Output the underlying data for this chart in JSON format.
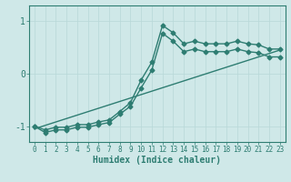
{
  "xlabel": "Humidex (Indice chaleur)",
  "ylabel": "",
  "xlim": [
    -0.5,
    23.5
  ],
  "ylim": [
    -1.3,
    1.3
  ],
  "xticks": [
    0,
    1,
    2,
    3,
    4,
    5,
    6,
    7,
    8,
    9,
    10,
    11,
    12,
    13,
    14,
    15,
    16,
    17,
    18,
    19,
    20,
    21,
    22,
    23
  ],
  "yticks": [
    -1,
    0,
    1
  ],
  "bg_color": "#cfe8e8",
  "line_color": "#2e7d72",
  "grid_color": "#b8d8d8",
  "line1_x": [
    0,
    1,
    2,
    3,
    4,
    5,
    6,
    7,
    8,
    9,
    10,
    11,
    12,
    13,
    14,
    15,
    16,
    17,
    18,
    19,
    20,
    21,
    22,
    23
  ],
  "line1_y": [
    -1.0,
    -1.07,
    -1.02,
    -1.02,
    -0.97,
    -0.97,
    -0.92,
    -0.88,
    -0.72,
    -0.55,
    -0.12,
    0.22,
    0.92,
    0.78,
    0.57,
    0.62,
    0.57,
    0.57,
    0.57,
    0.62,
    0.57,
    0.55,
    0.47,
    0.47
  ],
  "line2_x": [
    0,
    1,
    2,
    3,
    4,
    5,
    6,
    7,
    8,
    9,
    10,
    11,
    12,
    13,
    14,
    15,
    16,
    17,
    18,
    19,
    20,
    21,
    22,
    23
  ],
  "line2_y": [
    -1.0,
    -1.12,
    -1.07,
    -1.07,
    -1.02,
    -1.02,
    -0.97,
    -0.93,
    -0.77,
    -0.62,
    -0.27,
    0.07,
    0.77,
    0.62,
    0.42,
    0.47,
    0.42,
    0.42,
    0.42,
    0.47,
    0.42,
    0.4,
    0.32,
    0.32
  ],
  "line3_x": [
    0,
    23
  ],
  "line3_y": [
    -1.05,
    0.45
  ],
  "marker_size": 2.5,
  "line_width": 1.0,
  "tick_fontsize": 5.5,
  "label_fontsize": 7.0
}
